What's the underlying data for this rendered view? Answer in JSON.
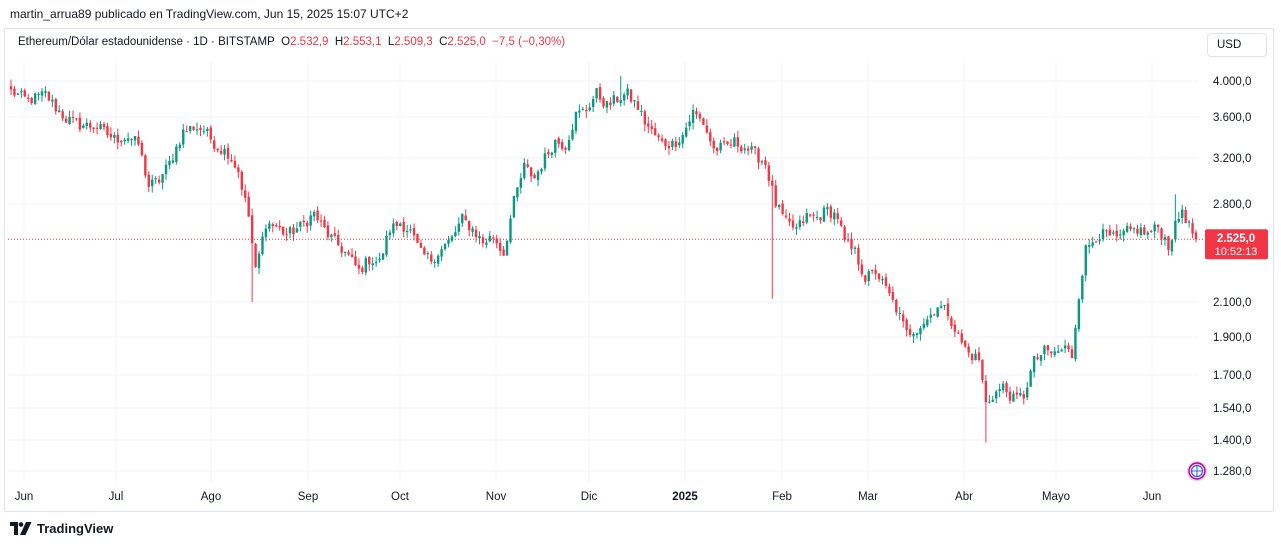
{
  "publisher_line": "martin_arrua89 publicado en TradingView.com, Jun 15, 2025 15:07 UTC+2",
  "legend": {
    "symbol": "Ethereum/Dólar estadounidense · 1D · BITSTAMP",
    "o_label": "O",
    "o_value": "2.532,9",
    "h_label": "H",
    "h_value": "2.553,1",
    "l_label": "L",
    "l_value": "2.509,3",
    "c_label": "C",
    "c_value": "2.525,0",
    "change": "−7,5 (−0,30%)"
  },
  "currency_button": "USD",
  "footer_brand": "TradingView",
  "colors": {
    "up": "#089981",
    "down": "#f23645",
    "grid": "#f0f3fa",
    "price_line": "#f23645"
  },
  "chart_data": {
    "type": "candlestick",
    "interval": "1D",
    "scale": "log",
    "y_ticks": [
      {
        "value": 4000,
        "label": "4.000,0"
      },
      {
        "value": 3600,
        "label": "3.600,0"
      },
      {
        "value": 3200,
        "label": "3.200,0"
      },
      {
        "value": 2800,
        "label": "2.800,0"
      },
      {
        "value": 2100,
        "label": "2.100,0"
      },
      {
        "value": 1900,
        "label": "1.900,0"
      },
      {
        "value": 1700,
        "label": "1.700,0"
      },
      {
        "value": 1540,
        "label": "1.540,0"
      },
      {
        "value": 1400,
        "label": "1.400,0"
      },
      {
        "value": 1280,
        "label": "1.280,0"
      }
    ],
    "x_ticks": [
      {
        "label": "Jun",
        "bold": false
      },
      {
        "label": "Jul",
        "bold": false
      },
      {
        "label": "Ago",
        "bold": false
      },
      {
        "label": "Sep",
        "bold": false
      },
      {
        "label": "Oct",
        "bold": false
      },
      {
        "label": "Nov",
        "bold": false
      },
      {
        "label": "Dic",
        "bold": false
      },
      {
        "label": "2025",
        "bold": true
      },
      {
        "label": "Feb",
        "bold": false
      },
      {
        "label": "Mar",
        "bold": false
      },
      {
        "label": "Abr",
        "bold": false
      },
      {
        "label": "Mayo",
        "bold": false
      },
      {
        "label": "Jun",
        "bold": false
      }
    ],
    "last_price": {
      "value": 2525,
      "label": "2.525,0",
      "countdown": "10:52:13"
    },
    "anchors": [
      [
        0,
        3880
      ],
      [
        5,
        3780
      ],
      [
        10,
        3850
      ],
      [
        13,
        3700
      ],
      [
        16,
        3580
      ],
      [
        20,
        3520
      ],
      [
        25,
        3500
      ],
      [
        30,
        3380
      ],
      [
        34,
        3400
      ],
      [
        37,
        3330
      ],
      [
        40,
        2950
      ],
      [
        43,
        3000
      ],
      [
        46,
        3150
      ],
      [
        50,
        3450
      ],
      [
        53,
        3500
      ],
      [
        56,
        3470
      ],
      [
        60,
        3300
      ],
      [
        63,
        3250
      ],
      [
        66,
        3080
      ],
      [
        69,
        2700
      ],
      [
        71,
        2300
      ],
      [
        74,
        2650
      ],
      [
        77,
        2620
      ],
      [
        80,
        2560
      ],
      [
        84,
        2620
      ],
      [
        88,
        2720
      ],
      [
        92,
        2560
      ],
      [
        95,
        2480
      ],
      [
        98,
        2400
      ],
      [
        101,
        2300
      ],
      [
        104,
        2380
      ],
      [
        107,
        2360
      ],
      [
        110,
        2600
      ],
      [
        113,
        2650
      ],
      [
        116,
        2580
      ],
      [
        119,
        2420
      ],
      [
        122,
        2380
      ],
      [
        125,
        2450
      ],
      [
        128,
        2530
      ],
      [
        131,
        2680
      ],
      [
        134,
        2600
      ],
      [
        137,
        2500
      ],
      [
        140,
        2550
      ],
      [
        143,
        2420
      ],
      [
        146,
        2820
      ],
      [
        149,
        3120
      ],
      [
        152,
        3020
      ],
      [
        155,
        3200
      ],
      [
        158,
        3360
      ],
      [
        161,
        3320
      ],
      [
        164,
        3620
      ],
      [
        167,
        3680
      ],
      [
        170,
        3860
      ],
      [
        173,
        3720
      ],
      [
        176,
        3800
      ],
      [
        179,
        3850
      ],
      [
        182,
        3700
      ],
      [
        184,
        3550
      ],
      [
        186,
        3450
      ],
      [
        189,
        3340
      ],
      [
        192,
        3330
      ],
      [
        195,
        3420
      ],
      [
        198,
        3650
      ],
      [
        201,
        3540
      ],
      [
        204,
        3280
      ],
      [
        207,
        3300
      ],
      [
        210,
        3350
      ],
      [
        213,
        3300
      ],
      [
        216,
        3240
      ],
      [
        219,
        3150
      ],
      [
        222,
        2800
      ],
      [
        225,
        2650
      ],
      [
        228,
        2600
      ],
      [
        231,
        2700
      ],
      [
        234,
        2690
      ],
      [
        237,
        2750
      ],
      [
        240,
        2700
      ],
      [
        242,
        2500
      ],
      [
        245,
        2430
      ],
      [
        248,
        2250
      ],
      [
        251,
        2300
      ],
      [
        254,
        2180
      ],
      [
        257,
        2060
      ],
      [
        260,
        1920
      ],
      [
        263,
        1950
      ],
      [
        266,
        2000
      ],
      [
        269,
        2080
      ],
      [
        272,
        2040
      ],
      [
        275,
        1900
      ],
      [
        278,
        1810
      ],
      [
        281,
        1780
      ],
      [
        283,
        1560
      ],
      [
        285,
        1600
      ],
      [
        288,
        1640
      ],
      [
        291,
        1580
      ],
      [
        294,
        1600
      ],
      [
        297,
        1770
      ],
      [
        300,
        1820
      ],
      [
        303,
        1810
      ],
      [
        306,
        1840
      ],
      [
        308,
        1800
      ],
      [
        310,
        2150
      ],
      [
        312,
        2450
      ],
      [
        315,
        2550
      ],
      [
        318,
        2560
      ],
      [
        321,
        2520
      ],
      [
        324,
        2580
      ],
      [
        327,
        2600
      ],
      [
        330,
        2560
      ],
      [
        333,
        2620
      ],
      [
        336,
        2480
      ],
      [
        338,
        2620
      ],
      [
        340,
        2760
      ],
      [
        342,
        2620
      ],
      [
        344,
        2525
      ]
    ]
  }
}
